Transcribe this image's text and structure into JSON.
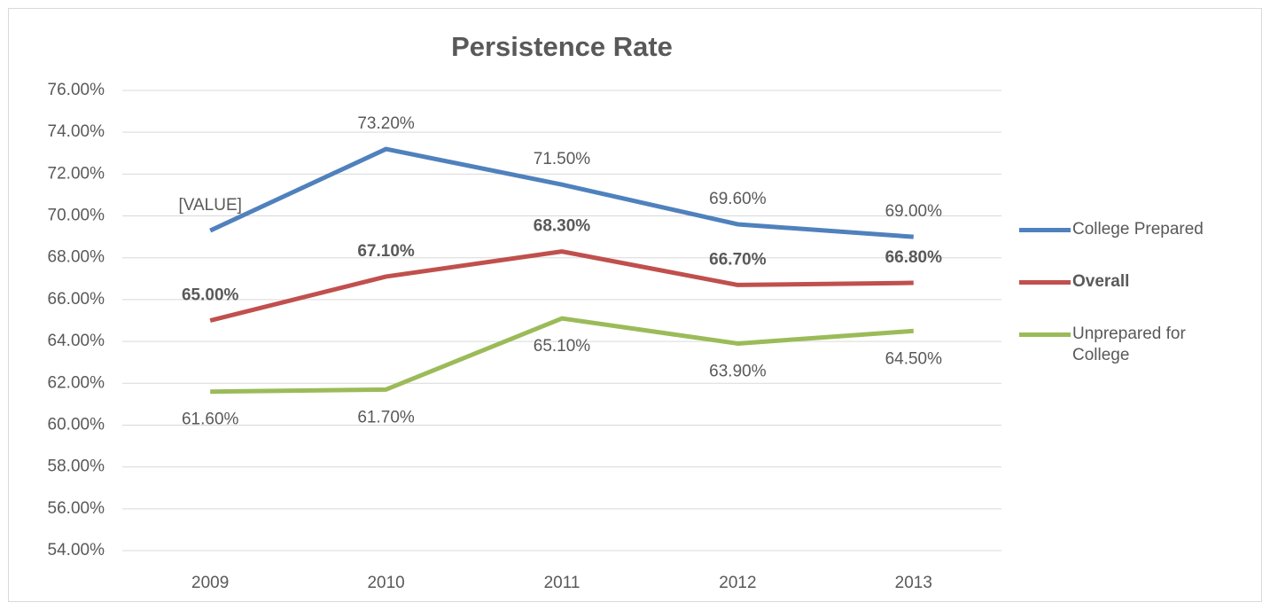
{
  "chart_data": {
    "type": "line",
    "title": "Persistence Rate",
    "categories": [
      "2009",
      "2010",
      "2011",
      "2012",
      "2013"
    ],
    "series": [
      {
        "name": "College Prepared",
        "color": "#4f81bd",
        "values": [
          69.3,
          73.2,
          71.5,
          69.6,
          69.0
        ],
        "value_labels": [
          "[VALUE]",
          "73.20%",
          "71.50%",
          "69.60%",
          "69.00%"
        ]
      },
      {
        "name": "Overall",
        "color": "#c0504d",
        "bold": true,
        "values": [
          65.0,
          67.1,
          68.3,
          66.7,
          66.8
        ],
        "value_labels": [
          "65.00%",
          "67.10%",
          "68.30%",
          "66.70%",
          "66.80%"
        ]
      },
      {
        "name": "Unprepared for College",
        "color": "#9bbb59",
        "values": [
          61.6,
          61.7,
          65.1,
          63.9,
          64.5
        ],
        "value_labels": [
          "61.60%",
          "61.70%",
          "65.10%",
          "63.90%",
          "64.50%"
        ]
      }
    ],
    "ylim": [
      54,
      76
    ],
    "yticks": [
      {
        "value": 54,
        "label": "54.00%"
      },
      {
        "value": 56,
        "label": "56.00%"
      },
      {
        "value": 58,
        "label": "58.00%"
      },
      {
        "value": 60,
        "label": "60.00%"
      },
      {
        "value": 62,
        "label": "62.00%"
      },
      {
        "value": 64,
        "label": "64.00%"
      },
      {
        "value": 66,
        "label": "66.00%"
      },
      {
        "value": 68,
        "label": "68.00%"
      },
      {
        "value": 70,
        "label": "70.00%"
      },
      {
        "value": 72,
        "label": "72.00%"
      },
      {
        "value": 74,
        "label": "74.00%"
      },
      {
        "value": 76,
        "label": "76.00%"
      }
    ],
    "grid": true,
    "legend": "right"
  }
}
